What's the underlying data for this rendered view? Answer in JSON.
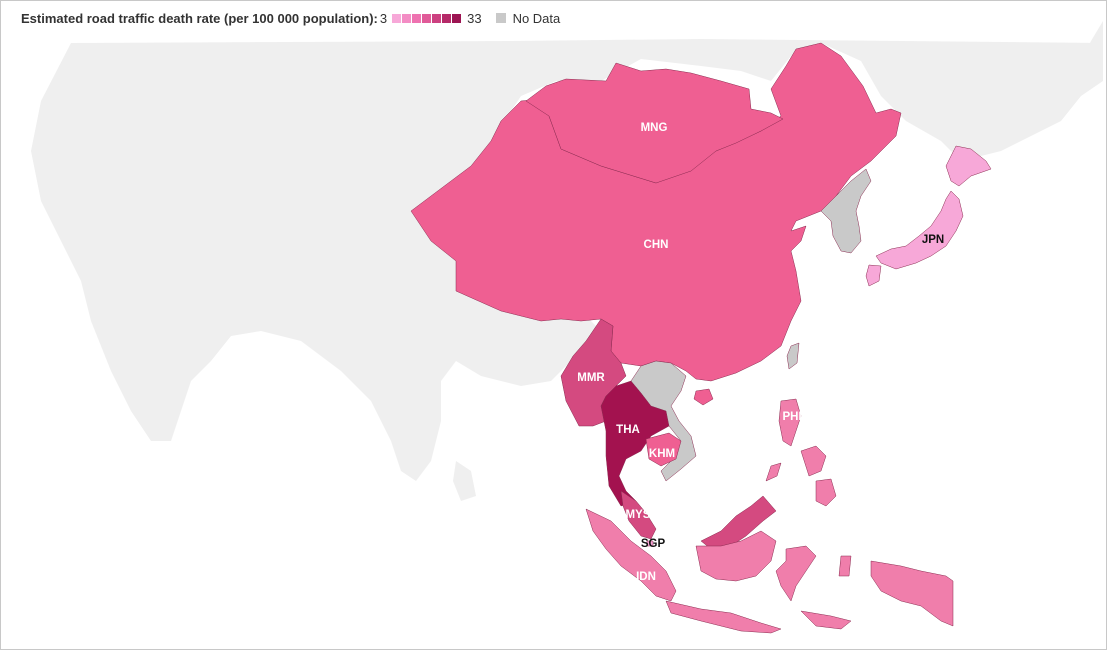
{
  "legend": {
    "title": "Estimated road traffic death rate (per 100 000 population):",
    "min": "3",
    "max": "33",
    "nodata_label": "No Data",
    "swatches": [
      "#f7a8d8",
      "#f38cc4",
      "#ee72b0",
      "#e05a98",
      "#cc4080",
      "#b52968",
      "#9c1452"
    ],
    "nodata_color": "#c9c9c9",
    "background_land_color": "#efefef"
  },
  "countries": [
    {
      "code": "MNG",
      "color": "#ef5f92",
      "label_style": "light"
    },
    {
      "code": "CHN",
      "color": "#ef5f92",
      "label_style": "light"
    },
    {
      "code": "JPN",
      "color": "#f7a8d8",
      "label_style": "dark"
    },
    {
      "code": "MMR",
      "color": "#d44a80",
      "label_style": "light"
    },
    {
      "code": "THA",
      "color": "#a3124f",
      "label_style": "light"
    },
    {
      "code": "KHM",
      "color": "#ef5f92",
      "label_style": "light"
    },
    {
      "code": "MYS",
      "color": "#d44a80",
      "label_style": "light"
    },
    {
      "code": "SGP",
      "color": "#f7a8d8",
      "label_style": "dark"
    },
    {
      "code": "IDN",
      "color": "#f07eab",
      "label_style": "light"
    },
    {
      "code": "PHL",
      "color": "#f07eab",
      "label_style": "light",
      "label": "PHL"
    }
  ],
  "nodata_regions": [
    "KOR/PRK",
    "LAO/VNM",
    "TWN"
  ]
}
